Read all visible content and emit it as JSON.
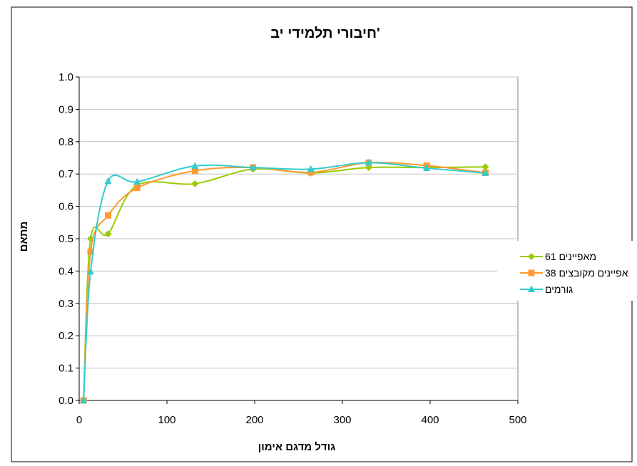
{
  "chart_data": {
    "type": "line",
    "title": "חיבורי תלמידי יב'",
    "xlabel": "גודל מדגם אימון",
    "ylabel": "מתאם",
    "xlim": [
      0,
      500
    ],
    "ylim": [
      0,
      1.0
    ],
    "x_ticks": [
      "0",
      "100",
      "200",
      "300",
      "400",
      "500"
    ],
    "y_ticks": [
      "0.0",
      "0.1",
      "0.2",
      "0.3",
      "0.4",
      "0.5",
      "0.6",
      "0.7",
      "0.8",
      "0.9",
      "1.0"
    ],
    "grid": "horizontal",
    "legend_position": "right",
    "smoothed": true,
    "series": [
      {
        "name": "61 מאפיינים",
        "color": "#99cc00",
        "marker": "diamond",
        "x": [
          5,
          13,
          33,
          66,
          132,
          198,
          264,
          330,
          396,
          463
        ],
        "y": [
          0.0,
          0.5,
          0.515,
          0.665,
          0.67,
          0.715,
          0.703,
          0.72,
          0.72,
          0.722
        ]
      },
      {
        "name": "38 אפיינים מקובצים",
        "color": "#ff9933",
        "marker": "square",
        "x": [
          5,
          13,
          33,
          66,
          132,
          198,
          264,
          330,
          396,
          463
        ],
        "y": [
          0.0,
          0.46,
          0.572,
          0.657,
          0.71,
          0.72,
          0.705,
          0.735,
          0.726,
          0.704
        ]
      },
      {
        "name": "גורמים",
        "color": "#33cccc",
        "marker": "triangle",
        "x": [
          5,
          13,
          33,
          66,
          132,
          198,
          264,
          330,
          396,
          463
        ],
        "y": [
          0.0,
          0.398,
          0.678,
          0.676,
          0.725,
          0.72,
          0.715,
          0.735,
          0.718,
          0.703
        ]
      }
    ]
  }
}
